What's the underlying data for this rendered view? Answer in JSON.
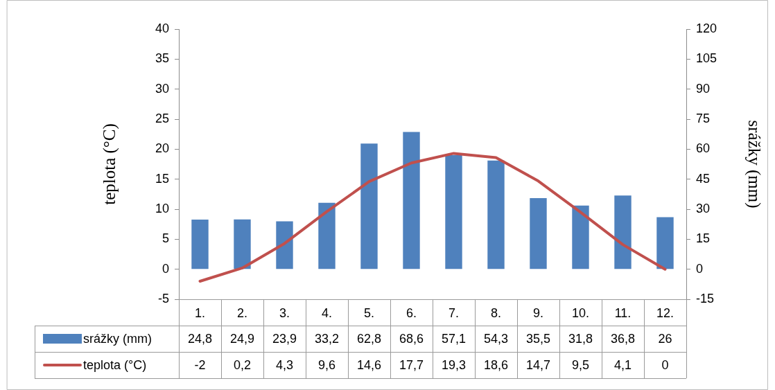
{
  "chart_data": {
    "type": "bar",
    "ylabel": "teplota (°C)",
    "y2label": "srážky (mm)",
    "categories": [
      "1.",
      "2.",
      "3.",
      "4.",
      "5.",
      "6.",
      "7.",
      "8.",
      "9.",
      "10.",
      "11.",
      "12."
    ],
    "series": [
      {
        "name": "srážky (mm)",
        "axis": "y2",
        "color": "#4f81bd",
        "values": [
          24.8,
          24.9,
          23.9,
          33.2,
          62.8,
          68.6,
          57.1,
          54.3,
          35.5,
          31.8,
          36.8,
          26
        ],
        "value_labels": [
          "24,8",
          "24,9",
          "23,9",
          "33,2",
          "62,8",
          "68,6",
          "57,1",
          "54,3",
          "35,5",
          "31,8",
          "36,8",
          "26"
        ]
      },
      {
        "name": "teplota (°C)",
        "type": "line",
        "axis": "y",
        "color": "#c0504d",
        "values": [
          -2,
          0.2,
          4.3,
          9.6,
          14.6,
          17.7,
          19.3,
          18.6,
          14.7,
          9.5,
          4.1,
          0
        ],
        "value_labels": [
          "-2",
          "0,2",
          "4,3",
          "9,6",
          "14,6",
          "17,7",
          "19,3",
          "18,6",
          "14,7",
          "9,5",
          "4,1",
          "0"
        ]
      }
    ],
    "ylim": [
      -5,
      40
    ],
    "yticks": [
      -5,
      0,
      5,
      10,
      15,
      20,
      25,
      30,
      35,
      40
    ],
    "y2lim": [
      -15,
      120
    ],
    "y2ticks": [
      -15,
      0,
      15,
      30,
      45,
      60,
      75,
      90,
      105,
      120
    ],
    "grid": false,
    "legend": "bottom",
    "marker": "none",
    "line_style": "solid"
  }
}
